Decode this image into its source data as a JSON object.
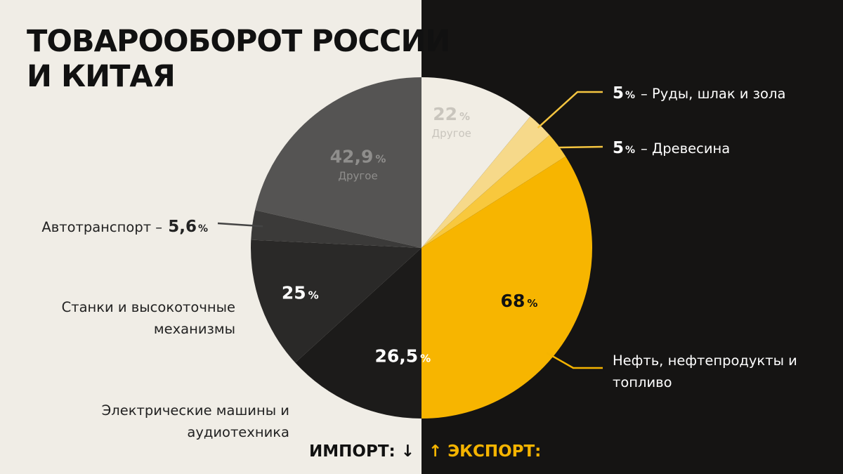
{
  "title_line1": "ТОВАРООБОРОТ РОССИИ",
  "title_line2": "И КИТАЯ",
  "import_label": "ИМПОРТ: ↓",
  "export_label": "↑ ЭКСПОРТ:",
  "chart_data": [
    {
      "type": "pie",
      "name": "ИМПОРТ",
      "slices": [
        {
          "label": "Другое",
          "value": 42.9,
          "value_text": "42,9",
          "color": "#555453",
          "text_color": "#8f8e8c"
        },
        {
          "label": "Автотранспорт",
          "value": 5.6,
          "value_text": "5,6",
          "color": "#3b3a39",
          "text_color": "#111111"
        },
        {
          "label": "Станки и высокоточные механизмы",
          "value": 25,
          "value_text": "25",
          "color": "#2a2928",
          "text_color": "#ffffff"
        },
        {
          "label": "Электрические машины и аудиотехника",
          "value": 26.5,
          "value_text": "26,5",
          "color": "#1c1b1a",
          "text_color": "#ffffff"
        }
      ]
    },
    {
      "type": "pie",
      "name": "ЭКСПОРТ",
      "slices": [
        {
          "label": "Другое",
          "value": 22,
          "value_text": "22",
          "color": "#f1ede4",
          "text_color": "#c9c5bd"
        },
        {
          "label": "Руды, шлак и зола",
          "value": 5,
          "value_text": "5",
          "color": "#f6d98a",
          "text_color": "#ffffff"
        },
        {
          "label": "Древесина",
          "value": 5,
          "value_text": "5",
          "color": "#f8c83d",
          "text_color": "#ffffff"
        },
        {
          "label": "Нефть, нефтепродукты и топливо",
          "value": 68,
          "value_text": "68",
          "color": "#f7b500",
          "text_color": "#111111"
        }
      ]
    }
  ]
}
